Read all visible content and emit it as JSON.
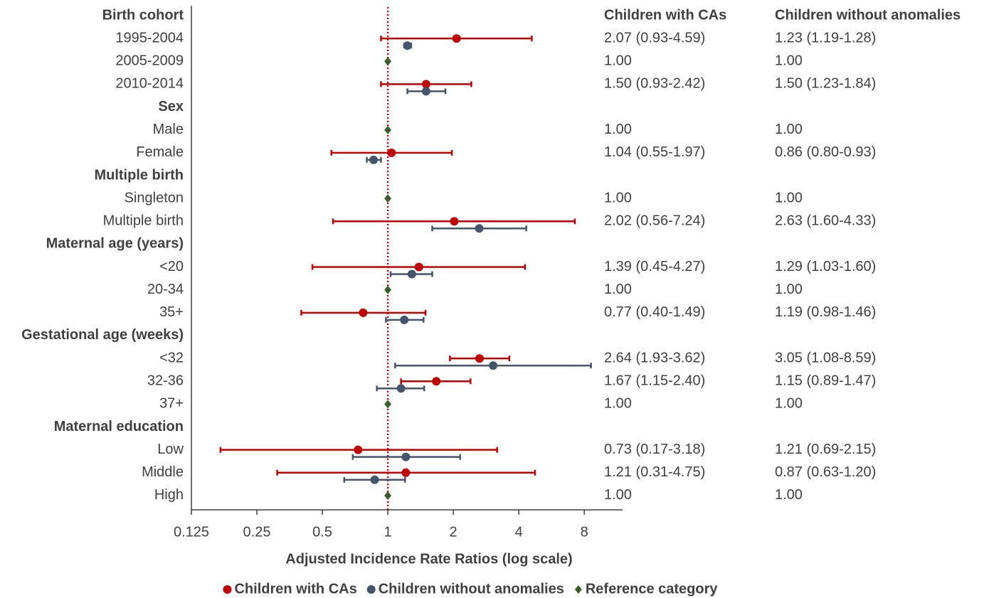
{
  "chart_data": {
    "type": "forest",
    "xlabel": "Adjusted Incidence Rate Ratios (log scale)",
    "log_scale": true,
    "xlim": [
      0.125,
      12
    ],
    "xticks": [
      0.125,
      0.25,
      0.5,
      1,
      2,
      4,
      8
    ],
    "reference_line": 1,
    "reference_line_color": "#c00000",
    "categories": [
      {
        "label": "Birth cohort",
        "header": true
      },
      {
        "label": "1995-2004",
        "header": false
      },
      {
        "label": "2005-2009",
        "header": false
      },
      {
        "label": "2010-2014",
        "header": false
      },
      {
        "label": "Sex",
        "header": true
      },
      {
        "label": "Male",
        "header": false
      },
      {
        "label": "Female",
        "header": false
      },
      {
        "label": "Multiple birth",
        "header": true
      },
      {
        "label": "Singleton",
        "header": false
      },
      {
        "label": "Multiple birth",
        "header": false
      },
      {
        "label": "Maternal age (years)",
        "header": true
      },
      {
        "label": "<20",
        "header": false
      },
      {
        "label": "20-34",
        "header": false
      },
      {
        "label": "35+",
        "header": false
      },
      {
        "label": "Gestational age (weeks)",
        "header": true
      },
      {
        "label": "<32",
        "header": false
      },
      {
        "label": "32-36",
        "header": false
      },
      {
        "label": "37+",
        "header": false
      },
      {
        "label": "Maternal education",
        "header": true
      },
      {
        "label": "Low",
        "header": false
      },
      {
        "label": "Middle",
        "header": false
      },
      {
        "label": "High",
        "header": false
      }
    ],
    "series": [
      {
        "name": "Children with CAs",
        "color": "#c00000",
        "marker": "circle",
        "values": [
          null,
          2.07,
          null,
          1.5,
          null,
          null,
          1.04,
          null,
          null,
          2.02,
          null,
          1.39,
          null,
          0.77,
          null,
          2.64,
          1.67,
          null,
          null,
          0.73,
          1.21,
          null
        ],
        "lower": [
          null,
          0.93,
          null,
          0.93,
          null,
          null,
          0.55,
          null,
          null,
          0.56,
          null,
          0.45,
          null,
          0.4,
          null,
          1.93,
          1.15,
          null,
          null,
          0.17,
          0.31,
          null
        ],
        "upper": [
          null,
          4.59,
          null,
          2.42,
          null,
          null,
          1.97,
          null,
          null,
          7.24,
          null,
          4.27,
          null,
          1.49,
          null,
          3.62,
          2.4,
          null,
          null,
          3.18,
          4.75,
          null
        ]
      },
      {
        "name": "Children without anomalies",
        "color": "#44546a",
        "marker": "circle",
        "values": [
          null,
          1.23,
          null,
          1.5,
          null,
          null,
          0.86,
          null,
          null,
          2.63,
          null,
          1.29,
          null,
          1.19,
          null,
          3.05,
          1.15,
          null,
          null,
          1.21,
          0.87,
          null
        ],
        "lower": [
          null,
          1.19,
          null,
          1.23,
          null,
          null,
          0.8,
          null,
          null,
          1.6,
          null,
          1.03,
          null,
          0.98,
          null,
          1.08,
          0.89,
          null,
          null,
          0.69,
          0.63,
          null
        ],
        "upper": [
          null,
          1.28,
          null,
          1.84,
          null,
          null,
          0.93,
          null,
          null,
          4.33,
          null,
          1.6,
          null,
          1.46,
          null,
          8.59,
          1.47,
          null,
          null,
          2.15,
          1.2,
          null
        ]
      },
      {
        "name": "Reference category",
        "color": "#3b5e2b",
        "marker": "diamond",
        "values": [
          null,
          null,
          1,
          null,
          null,
          1,
          null,
          null,
          1,
          null,
          null,
          null,
          1,
          null,
          null,
          null,
          null,
          1,
          null,
          null,
          null,
          1
        ]
      }
    ],
    "table": {
      "columns": [
        {
          "header": "Children with CAs",
          "cells": [
            null,
            "2.07 (0.93-4.59)",
            "1.00",
            "1.50 (0.93-2.42)",
            null,
            "1.00",
            "1.04 (0.55-1.97)",
            null,
            "1.00",
            "2.02 (0.56-7.24)",
            null,
            "1.39 (0.45-4.27)",
            "1.00",
            "0.77 (0.40-1.49)",
            null,
            "2.64 (1.93-3.62)",
            "1.67 (1.15-2.40)",
            "1.00",
            null,
            "0.73 (0.17-3.18)",
            "1.21 (0.31-4.75)",
            "1.00"
          ]
        },
        {
          "header": "Children without anomalies",
          "cells": [
            null,
            "1.23 (1.19-1.28)",
            "1.00",
            "1.50 (1.23-1.84)",
            null,
            "1.00",
            "0.86 (0.80-0.93)",
            null,
            "1.00",
            "2.63 (1.60-4.33)",
            null,
            "1.29 (1.03-1.60)",
            "1.00",
            "1.19 (0.98-1.46)",
            null,
            "3.05 (1.08-8.59)",
            "1.15 (0.89-1.47)",
            "1.00",
            null,
            "1.21 (0.69-2.15)",
            "0.87 (0.63-1.20)",
            "1.00"
          ]
        }
      ]
    }
  }
}
